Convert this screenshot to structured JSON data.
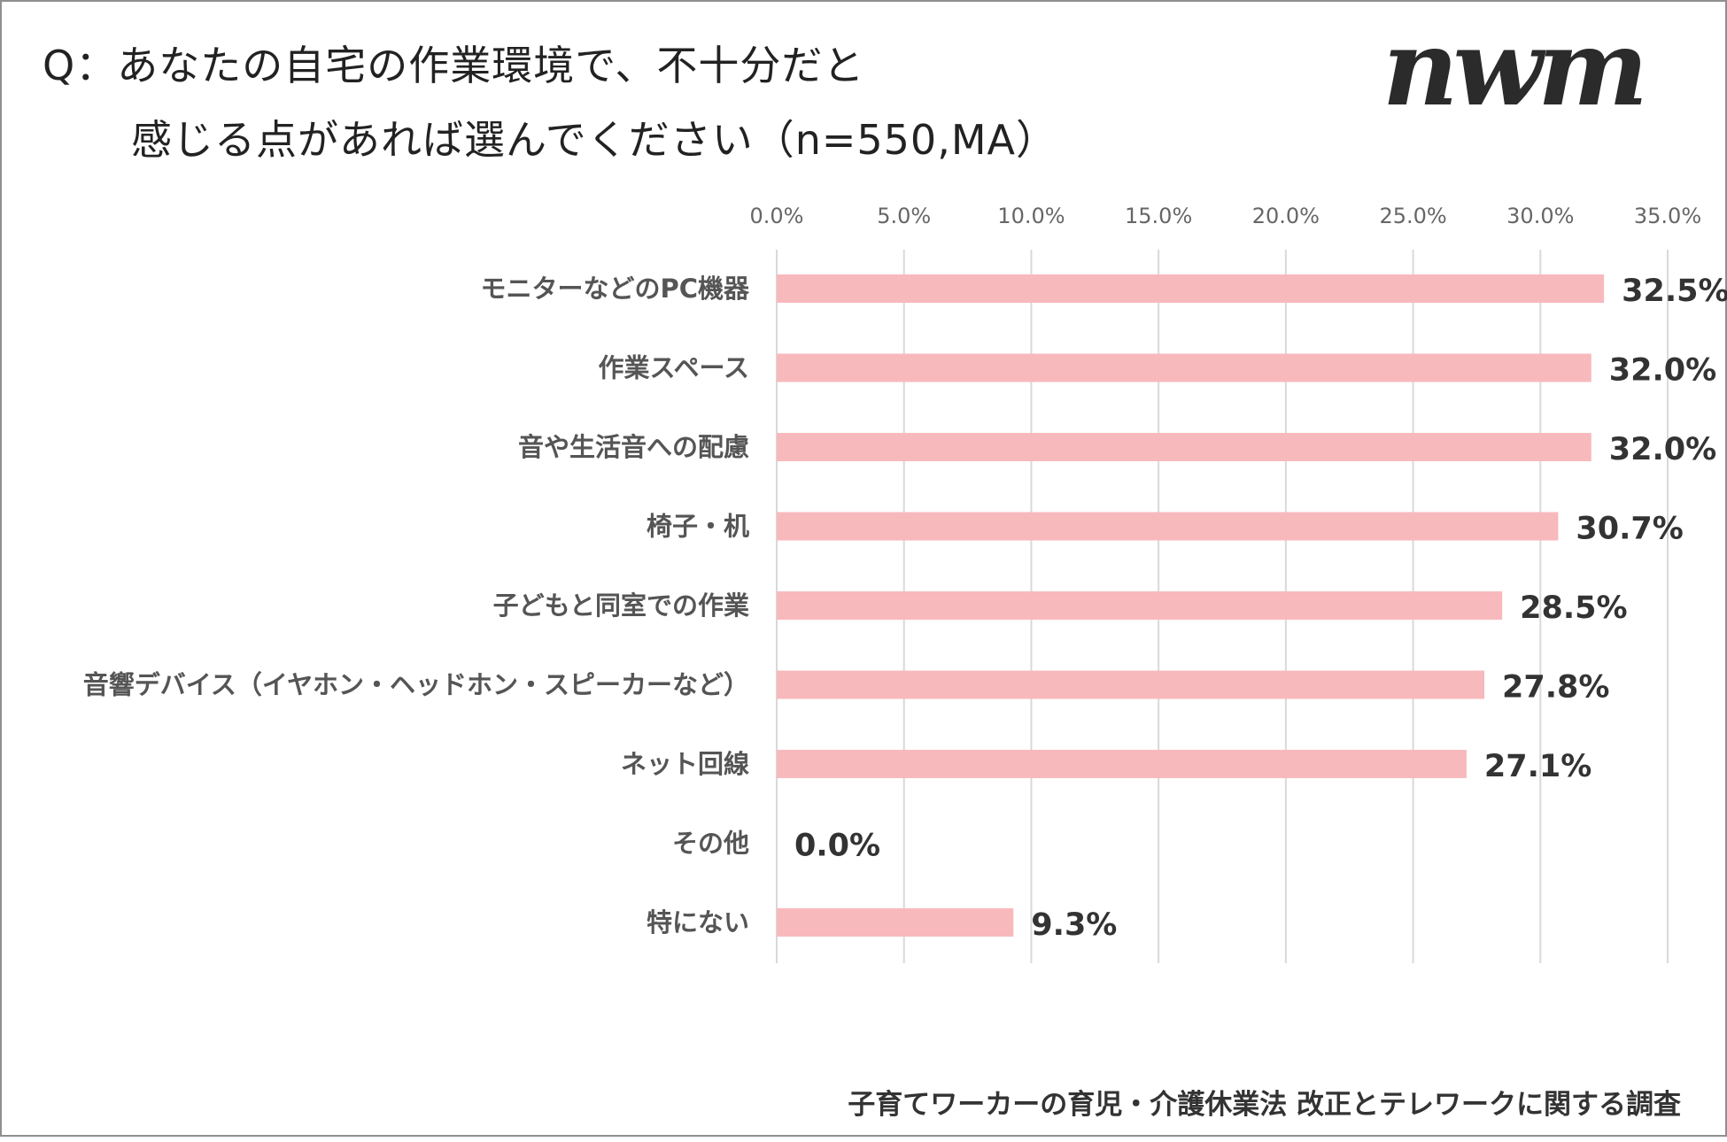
{
  "question": {
    "line1": "Q：あなたの自宅の作業環境で、不十分だと",
    "line2": "感じる点があれば選んでください（n=550,MA）"
  },
  "logo": {
    "text": "nwm"
  },
  "footer": "子育てワーカーの育児・介護休業法 改正とテレワークに関する調査",
  "colors": {
    "bar": "#f8b9bd",
    "grid": "#d9d9d9",
    "text": "#333333"
  },
  "chart_data": {
    "type": "bar",
    "orientation": "horizontal",
    "title": "Q：あなたの自宅の作業環境で、不十分だと感じる点があれば選んでください（n=550,MA）",
    "xlim": [
      0,
      35
    ],
    "tick_values": [
      0,
      5,
      10,
      15,
      20,
      25,
      30,
      35
    ],
    "tick_labels": [
      "0.0%",
      "5.0%",
      "10.0%",
      "15.0%",
      "20.0%",
      "25.0%",
      "30.0%",
      "35.0%"
    ],
    "axis_position": "top",
    "grid": true,
    "categories": [
      "モニターなどのPC機器",
      "作業スペース",
      "音や生活音への配慮",
      "椅子・机",
      "子どもと同室での作業",
      "音響デバイス（イヤホン・ヘッドホン・スピーカーなど）",
      "ネット回線",
      "その他",
      "特にない"
    ],
    "values": [
      32.5,
      32.0,
      32.0,
      30.7,
      28.5,
      27.8,
      27.1,
      0.0,
      9.3
    ],
    "value_labels": [
      "32.5%",
      "32.0%",
      "32.0%",
      "30.7%",
      "28.5%",
      "27.8%",
      "27.1%",
      "0.0%",
      "9.3%"
    ]
  }
}
